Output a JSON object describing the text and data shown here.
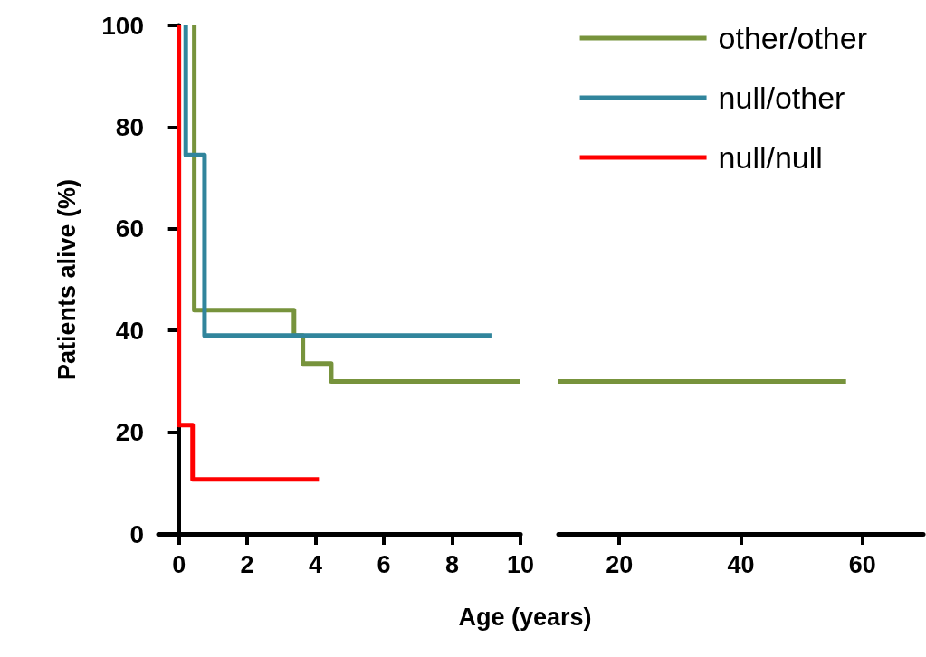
{
  "chart_data": [
    {
      "type": "step",
      "ylabel": "Patients alive (%)",
      "xlabel": "Age (years)",
      "xlim": [
        -0.6,
        10
      ],
      "xticks": [
        0,
        2,
        4,
        6,
        8,
        10
      ],
      "ylim": [
        0,
        100
      ],
      "yticks": [
        0,
        20,
        40,
        60,
        80,
        100
      ],
      "grid": false,
      "legend": "top right",
      "marker": "none",
      "line_style": "solid",
      "series": [
        {
          "name": "other/other",
          "color": "#77933c",
          "x": [
            0.45,
            0.45,
            3.37,
            3.63,
            4.46,
            10
          ],
          "values": [
            100,
            44,
            39,
            33.5,
            30,
            30
          ]
        },
        {
          "name": "null/other",
          "color": "#31859c",
          "x": [
            0.2,
            0.2,
            0.75,
            9.15
          ],
          "values": [
            100,
            74.5,
            39,
            39
          ]
        },
        {
          "name": "null/null",
          "color": "#ff0000",
          "x": [
            0,
            0,
            0.4,
            4.1
          ],
          "values": [
            100,
            21.4,
            10.7,
            10.7
          ]
        }
      ]
    },
    {
      "type": "step",
      "xlim": [
        10,
        70
      ],
      "xticks": [
        20,
        40,
        60
      ],
      "ylim": [
        0,
        100
      ],
      "tick_labels": "x",
      "grid": false,
      "legend": false,
      "marker": "none",
      "line_style": "solid",
      "series": [
        {
          "color": "#77933c",
          "x": [
            10,
            57.3
          ],
          "values": [
            30,
            30
          ]
        }
      ]
    }
  ]
}
